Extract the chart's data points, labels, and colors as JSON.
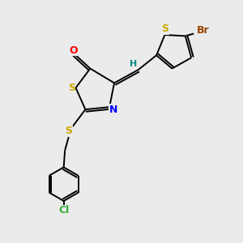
{
  "bg_color": "#ebebeb",
  "bond_color": "#000000",
  "S_color": "#ccaa00",
  "N_color": "#0000ff",
  "O_color": "#ff0000",
  "Br_color": "#994400",
  "Cl_color": "#33aa33",
  "H_color": "#008888",
  "figsize": [
    3.0,
    3.0
  ],
  "dpi": 100,
  "xlim": [
    0,
    10
  ],
  "ylim": [
    0,
    10
  ]
}
